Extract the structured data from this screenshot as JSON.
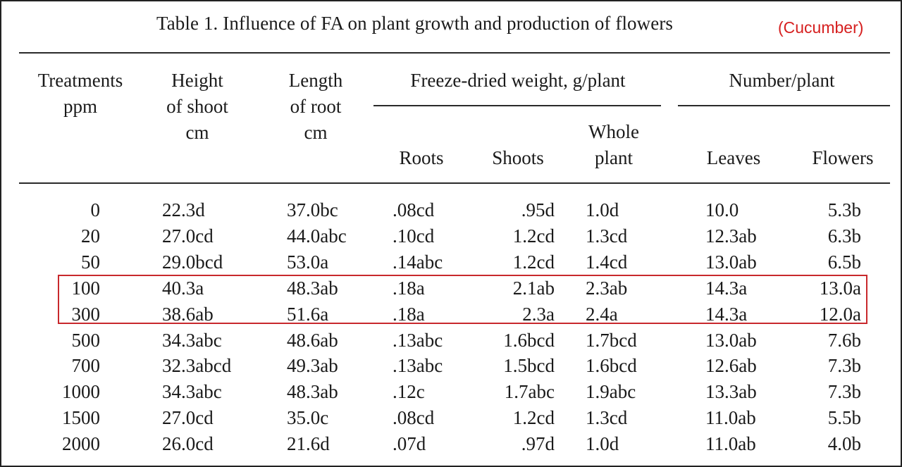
{
  "title": "Table 1. Influence of FA on plant growth and production of flowers",
  "annotation": "(Cucumber)",
  "accent_color": "#c8282c",
  "headers": {
    "treatments": [
      "Treatments",
      "ppm"
    ],
    "height": [
      "Height",
      "of shoot",
      "cm"
    ],
    "length": [
      "Length",
      "of root",
      "cm"
    ],
    "freeze_dried_group": "Freeze-dried weight, g/plant",
    "roots": "Roots",
    "shoots": "Shoots",
    "whole": [
      "Whole",
      "plant"
    ],
    "number_group": "Number/plant",
    "leaves": "Leaves",
    "flowers": "Flowers"
  },
  "rows": [
    [
      "0",
      "22.3d",
      "37.0bc",
      ".08cd",
      ".95d",
      "1.0d",
      "10.0",
      "5.3b"
    ],
    [
      "20",
      "27.0cd",
      "44.0abc",
      ".10cd",
      "1.2cd",
      "1.3cd",
      "12.3ab",
      "6.3b"
    ],
    [
      "50",
      "29.0bcd",
      "53.0a",
      ".14abc",
      "1.2cd",
      "1.4cd",
      "13.0ab",
      "6.5b"
    ],
    [
      "100",
      "40.3a",
      "48.3ab",
      ".18a",
      "2.1ab",
      "2.3ab",
      "14.3a",
      "13.0a"
    ],
    [
      "300",
      "38.6ab",
      "51.6a",
      ".18a",
      "2.3a",
      "2.4a",
      "14.3a",
      "12.0a"
    ],
    [
      "500",
      "34.3abc",
      "48.6ab",
      ".13abc",
      "1.6bcd",
      "1.7bcd",
      "13.0ab",
      "7.6b"
    ],
    [
      "700",
      "32.3abcd",
      "49.3ab",
      ".13abc",
      "1.5bcd",
      "1.6bcd",
      "12.6ab",
      "7.3b"
    ],
    [
      "1000",
      "34.3abc",
      "48.3ab",
      ".12c",
      "1.7abc",
      "1.9abc",
      "13.3ab",
      "7.3b"
    ],
    [
      "1500",
      "27.0cd",
      "35.0c",
      ".08cd",
      "1.2cd",
      "1.3cd",
      "11.0ab",
      "5.5b"
    ],
    [
      "2000",
      "26.0cd",
      "21.6d",
      ".07d",
      ".97d",
      "1.0d",
      "11.0ab",
      "4.0b"
    ]
  ]
}
